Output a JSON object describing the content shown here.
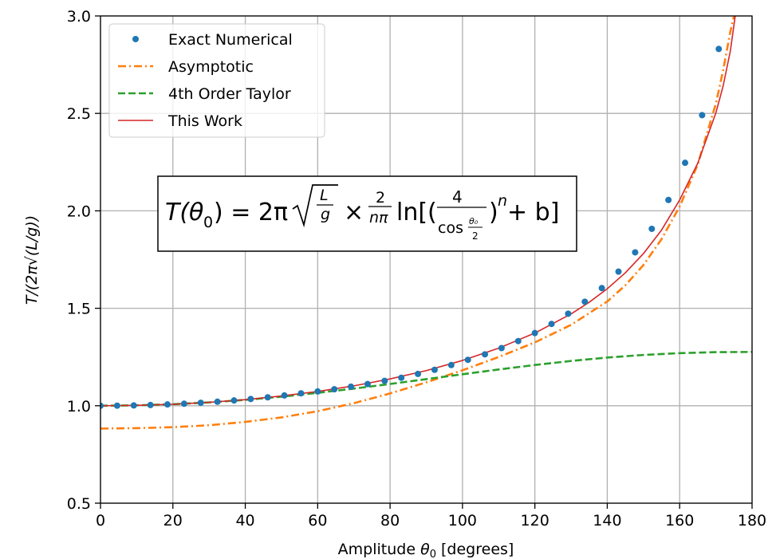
{
  "chart_data": {
    "type": "line",
    "xlabel_text": "Amplitude ",
    "xlabel_symbol": "θ",
    "xlabel_sub": "0",
    "xlabel_unit": " [degrees]",
    "ylabel": "T/(2π√(L/g))",
    "xlim": [
      0,
      180
    ],
    "ylim": [
      0.5,
      3.0
    ],
    "xticks": [
      "0",
      "20",
      "40",
      "60",
      "80",
      "100",
      "120",
      "140",
      "160",
      "180"
    ],
    "yticks": [
      "0.5",
      "1.0",
      "1.5",
      "2.0",
      "2.5",
      "3.0"
    ],
    "grid": true,
    "legend_position": "upper-left",
    "annotation": {
      "lhs": "T(θ",
      "lhs_sub": "0",
      "eq": ") = 2π",
      "sqrt_num": "L",
      "sqrt_den": "g",
      "times": "×",
      "frac_num": "2",
      "frac_den": "nπ",
      "ln": "ln[(",
      "inner_num": "4",
      "inner_den": "cos",
      "inner_den_num": "θ₀",
      "inner_den_den": "2",
      "close": ")",
      "power": "n",
      "tail": " + b]"
    },
    "series": [
      {
        "name": "Exact Numerical",
        "style": "markers",
        "color": "#1f77b4",
        "x": [
          0,
          4.6,
          9.2,
          13.8,
          18.5,
          23.1,
          27.7,
          32.3,
          36.9,
          41.5,
          46.2,
          50.8,
          55.4,
          60,
          64.6,
          69.2,
          73.8,
          78.5,
          83.1,
          87.7,
          92.3,
          96.9,
          101.5,
          106.2,
          110.8,
          115.4,
          120,
          124.6,
          129.2,
          133.8,
          138.5,
          143.1,
          147.7,
          152.3,
          156.9,
          161.5,
          166.2,
          170.8,
          175.4
        ],
        "y": [
          1.0,
          1.0004,
          1.0016,
          1.0037,
          1.0066,
          1.0103,
          1.015,
          1.0205,
          1.0271,
          1.0346,
          1.0432,
          1.0528,
          1.0637,
          1.0732,
          1.0846,
          1.0977,
          1.1112,
          1.1275,
          1.1435,
          1.1632,
          1.1843,
          1.2087,
          1.2356,
          1.2638,
          1.2958,
          1.3318,
          1.3729,
          1.4198,
          1.4723,
          1.5339,
          1.6035,
          1.6881,
          1.787,
          1.9076,
          2.0559,
          2.2464,
          2.4909,
          2.8306,
          3.1
        ]
      },
      {
        "name": "Asymptotic",
        "style": "dashdot",
        "color": "#ff7f0e",
        "x": [
          0,
          10,
          20,
          30,
          40,
          50,
          60,
          70,
          80,
          90,
          100,
          110,
          120,
          130,
          140,
          145,
          150,
          155,
          160,
          165,
          170,
          172,
          174,
          175,
          176
        ],
        "y": [
          0.883,
          0.885,
          0.89,
          0.9,
          0.917,
          0.94,
          0.972,
          1.013,
          1.063,
          1.12,
          1.182,
          1.25,
          1.325,
          1.415,
          1.535,
          1.618,
          1.722,
          1.855,
          2.022,
          2.238,
          2.55,
          2.72,
          2.92,
          3.0,
          3.1
        ]
      },
      {
        "name": "4th Order Taylor",
        "style": "dashed",
        "color": "#2ca02c",
        "x": [
          0,
          10,
          20,
          30,
          40,
          50,
          60,
          70,
          80,
          90,
          100,
          110,
          120,
          130,
          140,
          150,
          160,
          170,
          180
        ],
        "y": [
          1.0,
          1.0019,
          1.0076,
          1.0171,
          1.0301,
          1.0466,
          1.066,
          1.0879,
          1.1116,
          1.1364,
          1.1615,
          1.186,
          1.2091,
          1.2298,
          1.2473,
          1.2606,
          1.2699,
          1.2749,
          1.276
        ]
      },
      {
        "name": "This Work",
        "style": "solid",
        "color": "#d62728",
        "x": [
          0,
          10,
          20,
          30,
          40,
          50,
          60,
          70,
          80,
          90,
          100,
          110,
          120,
          130,
          135,
          140,
          145,
          150,
          155,
          160,
          165,
          170,
          172,
          174,
          175.5
        ],
        "y": [
          1.0,
          1.0019,
          1.0077,
          1.0175,
          1.0313,
          1.0499,
          1.0732,
          1.1021,
          1.1375,
          1.1803,
          1.2322,
          1.2953,
          1.3729,
          1.4711,
          1.5308,
          1.6003,
          1.6823,
          1.7809,
          1.9016,
          2.0558,
          2.2447,
          2.5023,
          2.64,
          2.82,
          3.02
        ]
      }
    ]
  }
}
